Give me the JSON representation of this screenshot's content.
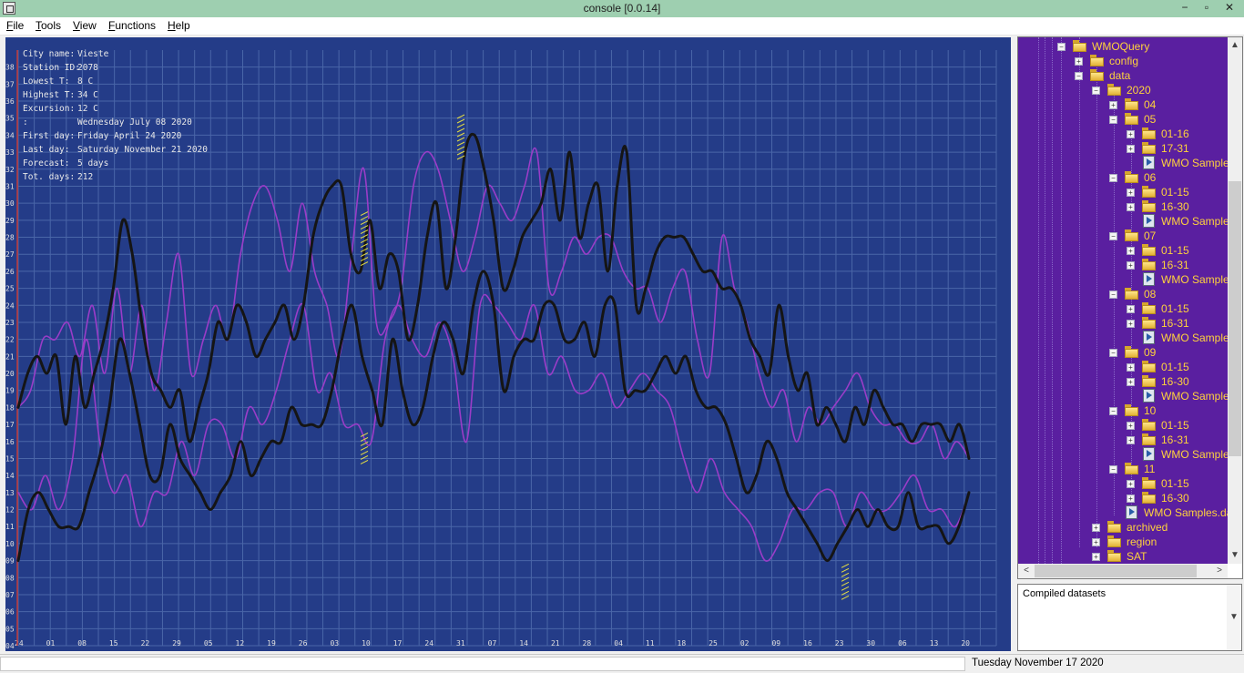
{
  "window": {
    "title": "console [0.0.14]",
    "minimize": "−",
    "maximize": "▫",
    "close": "✕"
  },
  "menu": [
    {
      "accel": "F",
      "rest": "ile"
    },
    {
      "accel": "T",
      "rest": "ools"
    },
    {
      "accel": "V",
      "rest": "iew"
    },
    {
      "accel": "F",
      "rest": "unctions"
    },
    {
      "accel": "H",
      "rest": "elp"
    }
  ],
  "info": [
    {
      "label": "City name:",
      "value": "Vieste"
    },
    {
      "label": "Station ID:",
      "value": "2078"
    },
    {
      "label": "Lowest T:",
      "value": "8 C"
    },
    {
      "label": "Highest T:",
      "value": "34 C"
    },
    {
      "label": "Excursion:",
      "value": "12 C"
    },
    {
      "label": "        :",
      "value": "Wednesday July 08 2020"
    },
    {
      "label": "First day:",
      "value": "Friday April 24 2020"
    },
    {
      "label": "Last day:",
      "value": "Saturday November 21 2020"
    },
    {
      "label": "Forecast:",
      "value": "5 days"
    },
    {
      "label": "Tot. days:",
      "value": "212"
    }
  ],
  "tree": [
    {
      "label": "WMOQuery",
      "level": 0,
      "type": "folder",
      "exp": "−"
    },
    {
      "label": "config",
      "level": 1,
      "type": "folder",
      "exp": "+"
    },
    {
      "label": "data",
      "level": 1,
      "type": "folder",
      "exp": "−"
    },
    {
      "label": "2020",
      "level": 2,
      "type": "folder",
      "exp": "−"
    },
    {
      "label": "04",
      "level": 3,
      "type": "folder",
      "exp": "+"
    },
    {
      "label": "05",
      "level": 3,
      "type": "folder",
      "exp": "−"
    },
    {
      "label": "01-16",
      "level": 4,
      "type": "folder",
      "exp": "+"
    },
    {
      "label": "17-31",
      "level": 4,
      "type": "folder",
      "exp": "+"
    },
    {
      "label": "WMO Samples",
      "level": 4,
      "type": "file"
    },
    {
      "label": "06",
      "level": 3,
      "type": "folder",
      "exp": "−"
    },
    {
      "label": "01-15",
      "level": 4,
      "type": "folder",
      "exp": "+"
    },
    {
      "label": "16-30",
      "level": 4,
      "type": "folder",
      "exp": "+"
    },
    {
      "label": "WMO Samples",
      "level": 4,
      "type": "file"
    },
    {
      "label": "07",
      "level": 3,
      "type": "folder",
      "exp": "−"
    },
    {
      "label": "01-15",
      "level": 4,
      "type": "folder",
      "exp": "+"
    },
    {
      "label": "16-31",
      "level": 4,
      "type": "folder",
      "exp": "+"
    },
    {
      "label": "WMO Samples",
      "level": 4,
      "type": "file"
    },
    {
      "label": "08",
      "level": 3,
      "type": "folder",
      "exp": "−"
    },
    {
      "label": "01-15",
      "level": 4,
      "type": "folder",
      "exp": "+"
    },
    {
      "label": "16-31",
      "level": 4,
      "type": "folder",
      "exp": "+"
    },
    {
      "label": "WMO Samples",
      "level": 4,
      "type": "file"
    },
    {
      "label": "09",
      "level": 3,
      "type": "folder",
      "exp": "−"
    },
    {
      "label": "01-15",
      "level": 4,
      "type": "folder",
      "exp": "+"
    },
    {
      "label": "16-30",
      "level": 4,
      "type": "folder",
      "exp": "+"
    },
    {
      "label": "WMO Samples",
      "level": 4,
      "type": "file"
    },
    {
      "label": "10",
      "level": 3,
      "type": "folder",
      "exp": "−"
    },
    {
      "label": "01-15",
      "level": 4,
      "type": "folder",
      "exp": "+"
    },
    {
      "label": "16-31",
      "level": 4,
      "type": "folder",
      "exp": "+"
    },
    {
      "label": "WMO Samples",
      "level": 4,
      "type": "file"
    },
    {
      "label": "11",
      "level": 3,
      "type": "folder",
      "exp": "−"
    },
    {
      "label": "01-15",
      "level": 4,
      "type": "folder",
      "exp": "+"
    },
    {
      "label": "16-30",
      "level": 4,
      "type": "folder",
      "exp": "+"
    },
    {
      "label": "WMO Samples.dat",
      "level": 3,
      "type": "file"
    },
    {
      "label": "archived",
      "level": 2,
      "type": "folder",
      "exp": "+"
    },
    {
      "label": "region",
      "level": 2,
      "type": "folder",
      "exp": "+"
    },
    {
      "label": "SAT",
      "level": 2,
      "type": "folder",
      "exp": "+"
    }
  ],
  "log": {
    "text": "Compiled datasets"
  },
  "status": {
    "date": "Tuesday November 17 2020"
  },
  "colors": {
    "background": "#243c88",
    "grid": "#4a66a8",
    "observed": "#151515",
    "forecast": "#9a3cc8",
    "marker": "#e8e040",
    "axis": "#c03838"
  },
  "chart_data": {
    "type": "line",
    "xlabel": "",
    "ylabel": "",
    "ylim": [
      4,
      39
    ],
    "y_ticks": [
      "04",
      "05",
      "06",
      "07",
      "08",
      "09",
      "10",
      "11",
      "12",
      "13",
      "14",
      "15",
      "16",
      "17",
      "18",
      "19",
      "20",
      "21",
      "22",
      "23",
      "24",
      "25",
      "26",
      "27",
      "28",
      "29",
      "30",
      "31",
      "32",
      "33",
      "34",
      "35",
      "36",
      "37",
      "38"
    ],
    "x_ticks": [
      "24",
      "01",
      "08",
      "15",
      "22",
      "29",
      "05",
      "12",
      "19",
      "26",
      "03",
      "10",
      "17",
      "24",
      "31",
      "07",
      "14",
      "21",
      "28",
      "04",
      "11",
      "18",
      "25",
      "02",
      "09",
      "16",
      "23",
      "30",
      "06",
      "13",
      "20"
    ],
    "grid": true,
    "series": [
      {
        "role": "observed high",
        "color": "#151515",
        "values": [
          18,
          20,
          21,
          20,
          21,
          17,
          21,
          18,
          20,
          22,
          25,
          29,
          27,
          23,
          20,
          19,
          18,
          19,
          16,
          18,
          20,
          23,
          22,
          24,
          23,
          21,
          22,
          23,
          24,
          22,
          24,
          28,
          30,
          31,
          31,
          27,
          26,
          29,
          25,
          27,
          26,
          22,
          24,
          28,
          30,
          25,
          28,
          33,
          34,
          32,
          29,
          25,
          26,
          28,
          29,
          30,
          32,
          29,
          33,
          28,
          30,
          31,
          26,
          31,
          33,
          24,
          25,
          27,
          28,
          28,
          28,
          27,
          26,
          26,
          25,
          25,
          24,
          22,
          21,
          20,
          24,
          21,
          19,
          20,
          17,
          18,
          17,
          16,
          18,
          17,
          19,
          18,
          17,
          17,
          16,
          17,
          17,
          17,
          16,
          17,
          15
        ]
      },
      {
        "role": "observed low",
        "color": "#151515",
        "values": [
          9,
          12,
          13,
          12,
          11,
          11,
          11,
          13,
          15,
          18,
          22,
          20,
          17,
          14,
          14,
          17,
          15,
          14,
          13,
          12,
          13,
          14,
          16,
          14,
          15,
          16,
          16,
          18,
          17,
          17,
          17,
          19,
          22,
          24,
          21,
          19,
          17,
          22,
          19,
          17,
          18,
          21,
          23,
          22,
          20,
          24,
          26,
          24,
          19,
          21,
          22,
          22,
          24,
          24,
          22,
          22,
          23,
          21,
          24,
          24,
          19,
          19,
          19,
          20,
          21,
          20,
          21,
          19,
          18,
          18,
          17,
          15,
          13,
          14,
          16,
          15,
          13,
          12,
          11,
          10,
          9,
          10,
          11,
          12,
          11,
          12,
          11,
          11,
          13,
          11,
          11,
          11,
          10,
          11,
          13
        ]
      },
      {
        "role": "forecast high",
        "color": "#9a3cc8",
        "values": [
          18,
          19,
          22,
          22,
          23,
          21,
          24,
          20,
          25,
          20,
          24,
          19,
          23,
          27,
          20,
          22,
          24,
          22,
          27,
          30,
          31,
          29,
          26,
          30,
          26,
          24,
          21,
          27,
          32,
          23,
          23,
          25,
          31,
          33,
          32,
          29,
          26,
          28,
          31,
          30,
          29,
          31,
          33,
          25,
          26,
          28,
          27,
          28,
          28,
          26,
          25,
          25,
          23,
          25,
          26,
          22,
          20,
          28,
          25,
          23,
          20,
          18,
          19,
          16,
          18,
          17,
          18,
          19,
          20,
          18,
          17,
          17,
          16,
          16,
          17,
          15,
          16,
          15
        ]
      },
      {
        "role": "forecast low",
        "color": "#9a3cc8",
        "values": [
          13,
          12,
          14,
          12,
          15,
          22,
          16,
          13,
          14,
          11,
          13,
          13,
          16,
          14,
          17,
          17,
          15,
          18,
          17,
          19,
          22,
          24,
          19,
          20,
          17,
          17,
          16,
          22,
          24,
          22,
          21,
          23,
          21,
          16,
          24,
          24,
          23,
          22,
          24,
          20,
          21,
          19,
          19,
          20,
          18,
          19,
          20,
          19,
          18,
          15,
          13,
          15,
          13,
          12,
          11,
          9,
          10,
          12,
          12,
          13,
          13,
          11,
          13,
          12,
          12,
          13,
          14,
          12,
          12,
          11,
          13
        ]
      }
    ]
  }
}
